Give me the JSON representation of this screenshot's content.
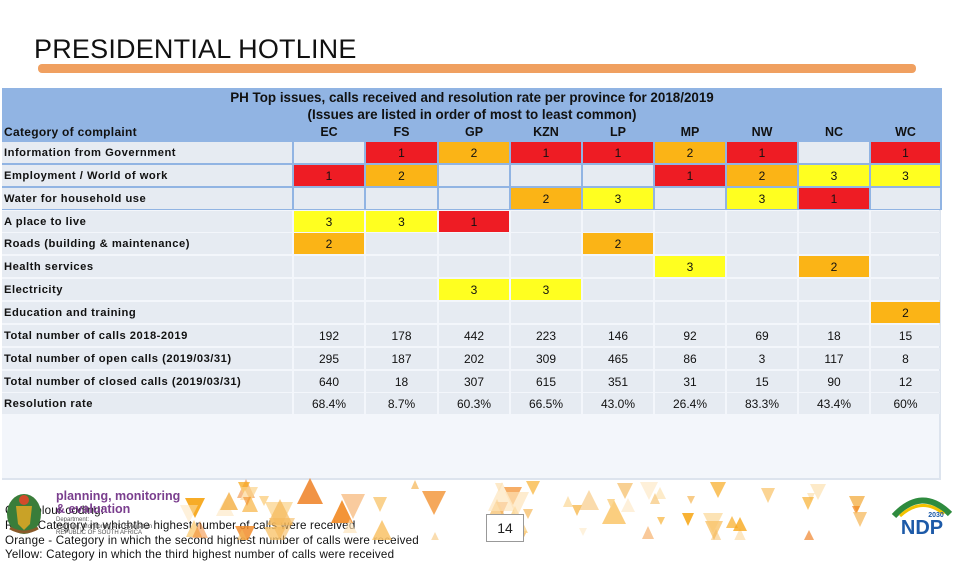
{
  "slide": {
    "title": "PRESIDENTIAL HOTLINE",
    "page_number": "14"
  },
  "table": {
    "title_line1": "PH Top issues, calls received and resolution rate per province for 2018/2019",
    "title_line2": "(Issues are listed in order of most to least common)",
    "corner_label": "Category of complaint",
    "columns": [
      "EC",
      "FS",
      "GP",
      "KZN",
      "LP",
      "MP",
      "NW",
      "NC",
      "WC"
    ],
    "colors": {
      "red": "#ee1c24",
      "orange": "#fbb416",
      "yellow": "#ffff20",
      "empty": "#e6ebf2",
      "header": "#91b4e3"
    },
    "rows": [
      {
        "label": "Information from Government",
        "cells": [
          "",
          "1",
          "2",
          "1",
          "1",
          "2",
          "1",
          "",
          "1"
        ],
        "colors": [
          "",
          "red",
          "orange",
          "red",
          "red",
          "orange",
          "red",
          "",
          "red"
        ]
      },
      {
        "label": "Employment / World of work",
        "cells": [
          "1",
          "2",
          "",
          "",
          "",
          "1",
          "2",
          "3",
          "3"
        ],
        "colors": [
          "red",
          "orange",
          "",
          "",
          "",
          "red",
          "orange",
          "yellow",
          "yellow"
        ]
      },
      {
        "label": "Water for household use",
        "cells": [
          "",
          "",
          "",
          "2",
          "3",
          "",
          "3",
          "1",
          ""
        ],
        "colors": [
          "",
          "",
          "",
          "orange",
          "yellow",
          "",
          "yellow",
          "red",
          ""
        ]
      },
      {
        "label": "A place to live",
        "cells": [
          "3",
          "3",
          "1",
          "",
          "",
          "",
          "",
          "",
          ""
        ],
        "colors": [
          "yellow",
          "yellow",
          "red",
          "",
          "",
          "",
          "",
          "",
          ""
        ]
      },
      {
        "label": "Roads (building & maintenance)",
        "cells": [
          "2",
          "",
          "",
          "",
          "2",
          "",
          "",
          "",
          ""
        ],
        "colors": [
          "orange",
          "",
          "",
          "",
          "orange",
          "",
          "",
          "",
          ""
        ]
      },
      {
        "label": "Health services",
        "cells": [
          "",
          "",
          "",
          "",
          "",
          "3",
          "",
          "2",
          ""
        ],
        "colors": [
          "",
          "",
          "",
          "",
          "",
          "yellow",
          "",
          "orange",
          ""
        ]
      },
      {
        "label": "Electricity",
        "cells": [
          "",
          "",
          "3",
          "3",
          "",
          "",
          "",
          "",
          ""
        ],
        "colors": [
          "",
          "",
          "yellow",
          "yellow",
          "",
          "",
          "",
          "",
          ""
        ]
      },
      {
        "label": "Education and training",
        "cells": [
          "",
          "",
          "",
          "",
          "",
          "",
          "",
          "",
          "2"
        ],
        "colors": [
          "",
          "",
          "",
          "",
          "",
          "",
          "",
          "",
          "orange"
        ]
      },
      {
        "label": "Total number of calls 2018-2019",
        "cells": [
          "192",
          "178",
          "442",
          "223",
          "146",
          "92",
          "69",
          "18",
          "15"
        ],
        "colors": [
          "",
          "",
          "",
          "",
          "",
          "",
          "",
          "",
          ""
        ]
      },
      {
        "label": "Total number of open calls (2019/03/31)",
        "cells": [
          "295",
          "187",
          "202",
          "309",
          "465",
          "86",
          "3",
          "117",
          "8"
        ],
        "colors": [
          "",
          "",
          "",
          "",
          "",
          "",
          "",
          "",
          ""
        ]
      },
      {
        "label": "Total number of closed calls (2019/03/31)",
        "cells": [
          "640",
          "18",
          "307",
          "615",
          "351",
          "31",
          "15",
          "90",
          "12"
        ],
        "colors": [
          "",
          "",
          "",
          "",
          "",
          "",
          "",
          "",
          ""
        ]
      },
      {
        "label": "Resolution rate",
        "cells": [
          "68.4%",
          "8.7%",
          "60.3%",
          "66.5%",
          "43.0%",
          "26.4%",
          "83.3%",
          "43.4%",
          "60%"
        ],
        "colors": [
          "",
          "",
          "",
          "",
          "",
          "",
          "",
          "",
          ""
        ]
      }
    ]
  },
  "legend": {
    "heading": "Cell colour coding:",
    "red": "Red - Category in whichthe highest number of calls were received",
    "orange": "Orange - Category in which the second highest number of calls were received",
    "yellow": "Yellow: Category in which the third highest number of calls were received"
  },
  "footer": {
    "pme_line1": "planning, monitoring",
    "pme_line2": "& evaluation",
    "pme_sub1": "Department:",
    "pme_sub2": "Planning, Monitoring and Evaluation",
    "pme_sub3": "REPUBLIC OF SOUTH AFRICA",
    "ndp_text": "NDP",
    "ndp_year": "2030"
  }
}
